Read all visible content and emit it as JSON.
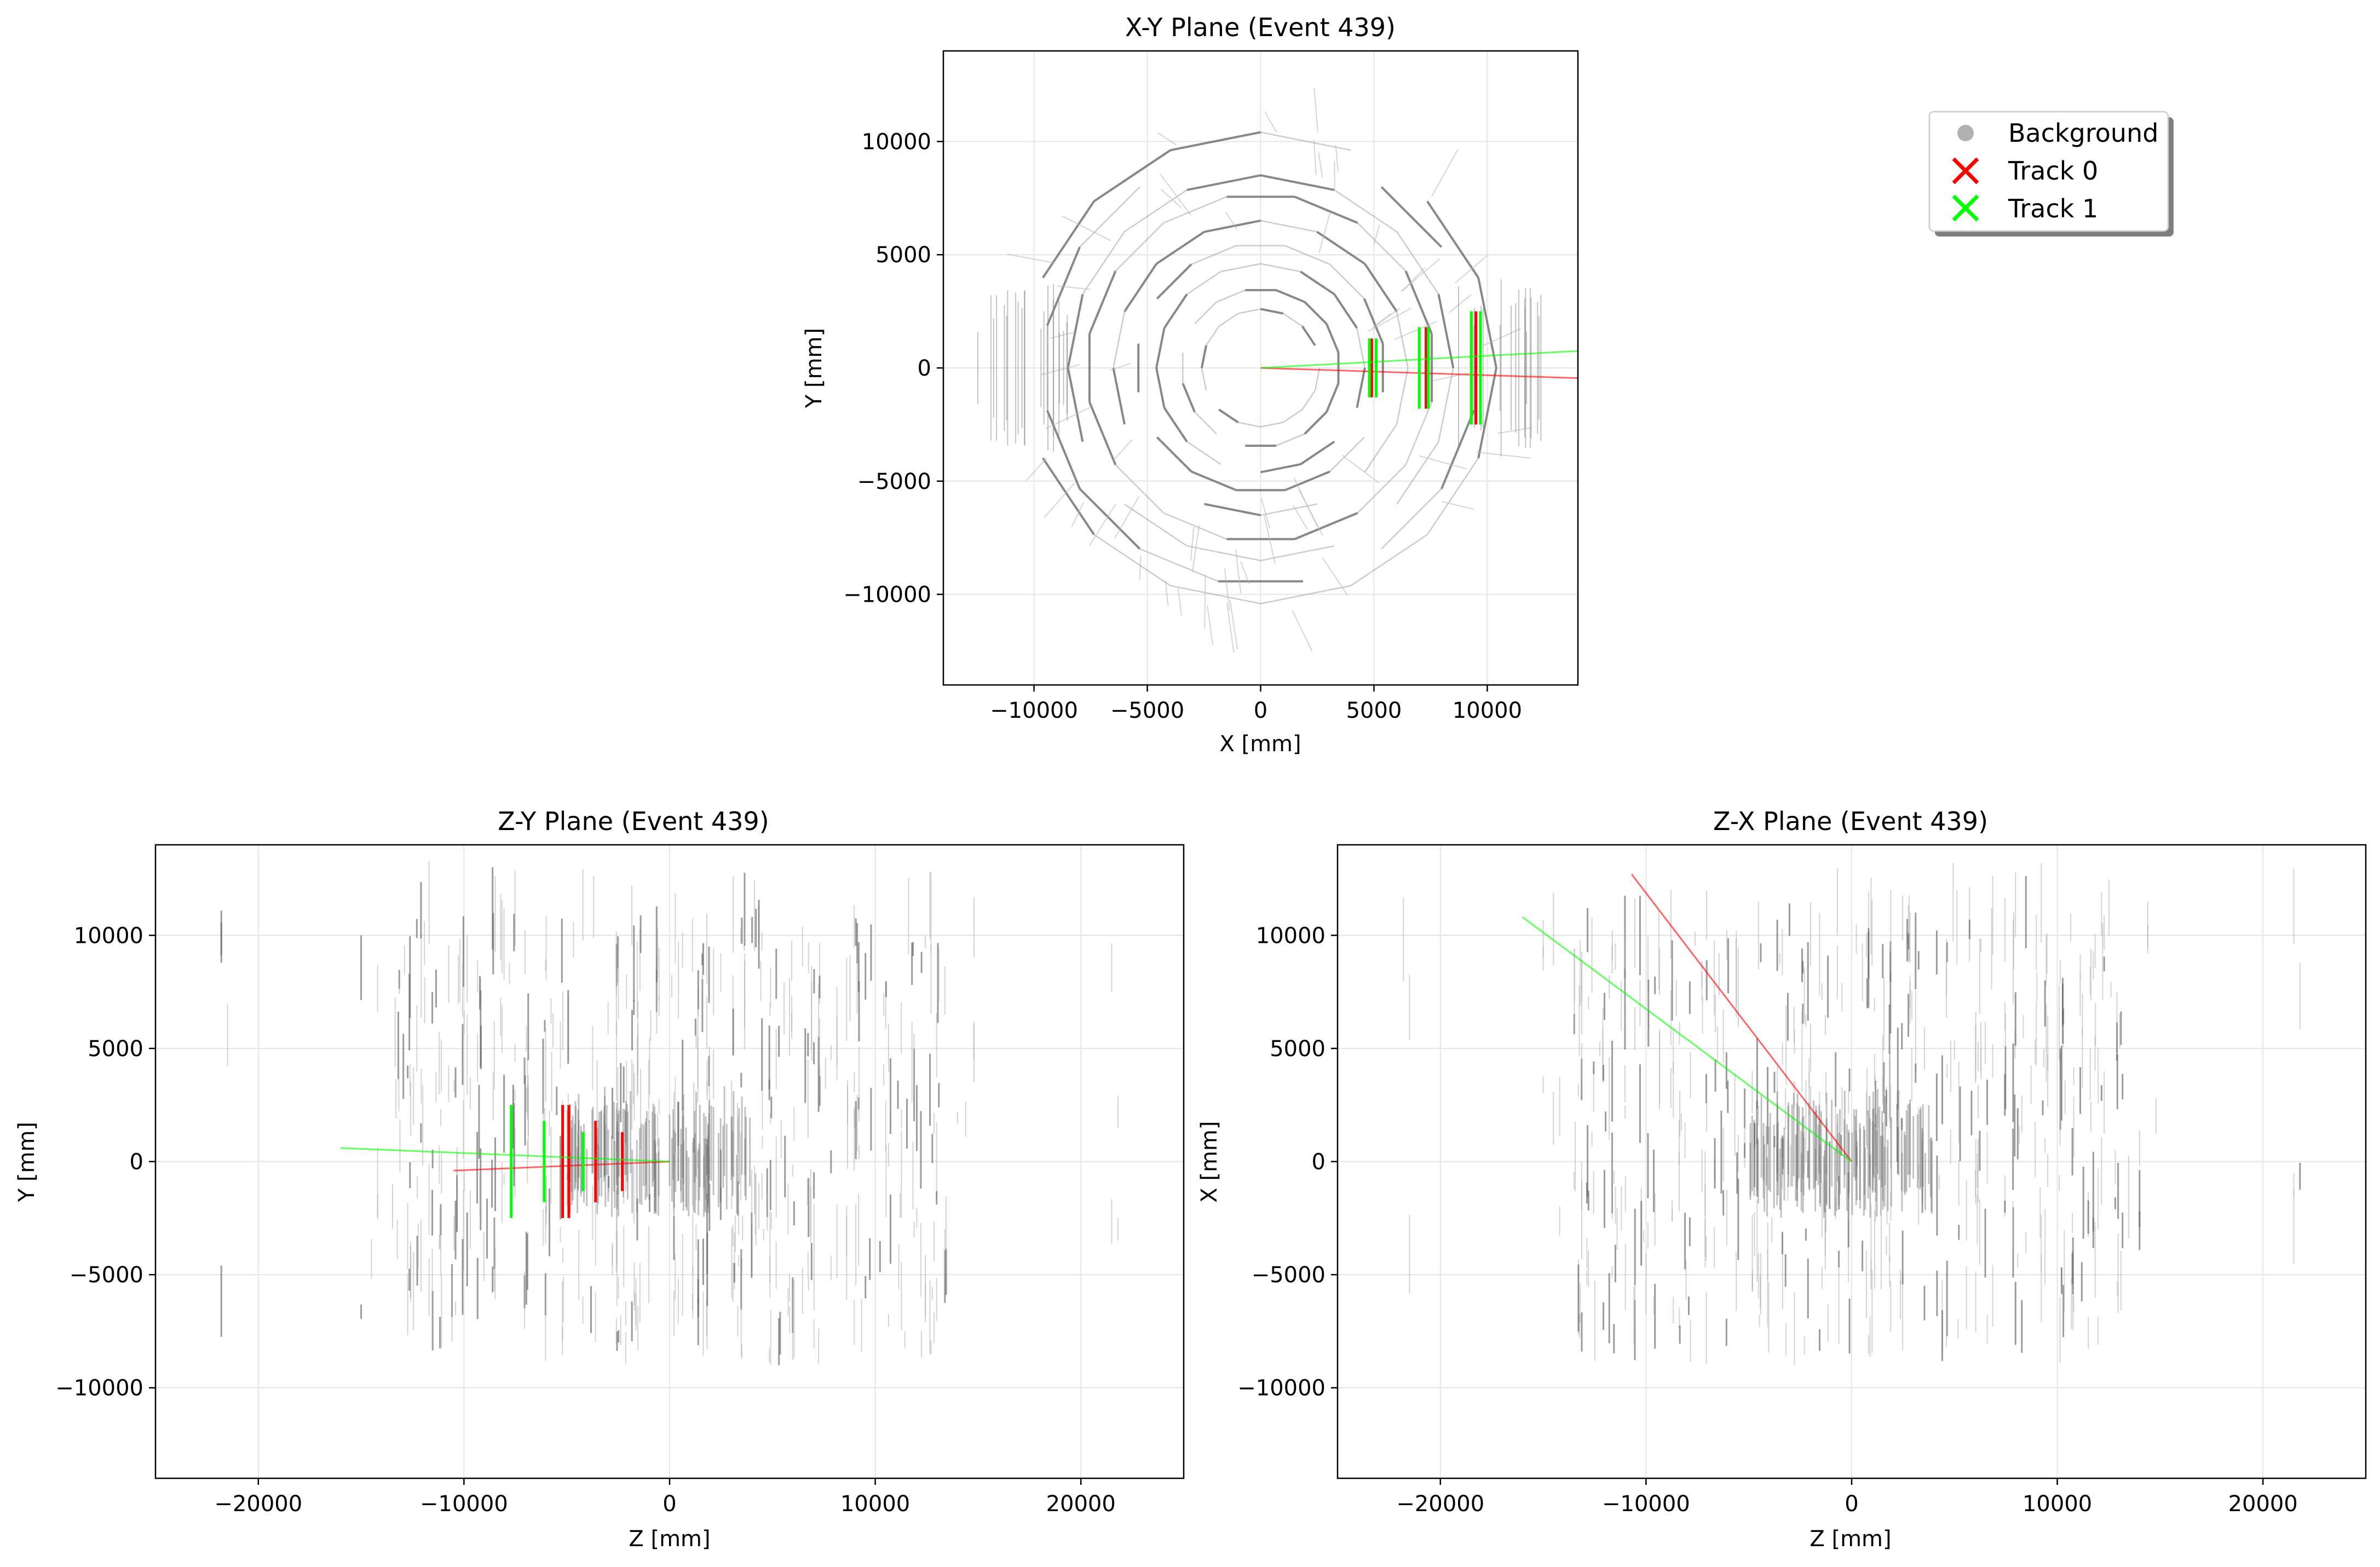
{
  "chart_data": [
    {
      "id": "xy",
      "type": "scatter",
      "title": "X-Y Plane (Event 439)",
      "xlabel": "X [mm]",
      "ylabel": "Y [mm]",
      "xlim": [
        -14000,
        14000
      ],
      "ylim": [
        -14000,
        14000
      ],
      "xticks": [
        -10000,
        -5000,
        0,
        5000,
        10000
      ],
      "yticks": [
        -10000,
        -5000,
        0,
        5000,
        10000
      ],
      "xtick_labels": [
        "−10000",
        "−5000",
        "0",
        "5000",
        "10000"
      ],
      "ytick_labels": [
        "−10000",
        "−5000",
        "0",
        "5000",
        "10000"
      ],
      "grid": true,
      "background_pattern": "rings",
      "background_rings": [
        2600,
        3500,
        4600,
        5500,
        6500,
        7700,
        8500,
        9600,
        10400
      ],
      "series": [
        {
          "name": "Track 0",
          "color": "#ff0000",
          "segments": [
            [
              0,
              0,
              14000,
              -450
            ]
          ],
          "hits": [
            [
              4900,
              -1300,
              4900,
              1300
            ],
            [
              7300,
              -1800,
              7300,
              1800
            ],
            [
              9500,
              -2500,
              9500,
              2500
            ]
          ]
        },
        {
          "name": "Track 1",
          "color": "#00ff00",
          "segments": [
            [
              0,
              0,
              14000,
              750
            ]
          ],
          "hits": [
            [
              4800,
              -1300,
              4800,
              1300
            ],
            [
              5100,
              -1300,
              5100,
              1300
            ],
            [
              7000,
              -1800,
              7000,
              1800
            ],
            [
              7400,
              -1800,
              7400,
              1800
            ],
            [
              9300,
              -2500,
              9300,
              2500
            ],
            [
              9700,
              -2500,
              9700,
              2500
            ]
          ]
        }
      ]
    },
    {
      "id": "zy",
      "type": "scatter",
      "title": "Z-Y Plane (Event 439)",
      "xlabel": "Z [mm]",
      "ylabel": "Y [mm]",
      "xlim": [
        -25000,
        25000
      ],
      "ylim": [
        -14000,
        14000
      ],
      "xticks": [
        -20000,
        -10000,
        0,
        10000,
        20000
      ],
      "yticks": [
        -10000,
        -5000,
        0,
        5000,
        10000
      ],
      "xtick_labels": [
        "−20000",
        "−10000",
        "0",
        "10000",
        "20000"
      ],
      "ytick_labels": [
        "−10000",
        "−5000",
        "0",
        "5000",
        "10000"
      ],
      "grid": true,
      "background_pattern": "barrel",
      "series": [
        {
          "name": "Track 0",
          "color": "#ff0000",
          "segments": [
            [
              -10500,
              -400,
              0,
              0
            ]
          ],
          "hits": [
            [
              -5200,
              -2500,
              -5200,
              2500
            ],
            [
              -4900,
              -2500,
              -4900,
              2500
            ],
            [
              -3600,
              -1800,
              -3600,
              1800
            ],
            [
              -2300,
              -1300,
              -2300,
              1300
            ]
          ]
        },
        {
          "name": "Track 1",
          "color": "#00ff00",
          "segments": [
            [
              -16000,
              600,
              0,
              0
            ]
          ],
          "hits": [
            [
              -7700,
              -2500,
              -7700,
              2500
            ],
            [
              -6100,
              -1800,
              -6100,
              1800
            ],
            [
              -4200,
              -1300,
              -4200,
              1300
            ]
          ]
        }
      ]
    },
    {
      "id": "zx",
      "type": "scatter",
      "title": "Z-X Plane (Event 439)",
      "xlabel": "Z [mm]",
      "ylabel": "X [mm]",
      "xlim": [
        -25000,
        25000
      ],
      "ylim": [
        -14000,
        14000
      ],
      "xticks": [
        -20000,
        -10000,
        0,
        10000,
        20000
      ],
      "yticks": [
        -10000,
        -5000,
        0,
        5000,
        10000
      ],
      "xtick_labels": [
        "−20000",
        "−10000",
        "0",
        "10000",
        "20000"
      ],
      "ytick_labels": [
        "−10000",
        "−5000",
        "0",
        "5000",
        "10000"
      ],
      "grid": true,
      "background_pattern": "barrel",
      "series": [
        {
          "name": "Track 0",
          "color": "#ff0000",
          "segments": [
            [
              -10700,
              12700,
              0,
              0
            ]
          ],
          "hits": []
        },
        {
          "name": "Track 1",
          "color": "#00ff00",
          "segments": [
            [
              -16000,
              10800,
              0,
              0
            ]
          ],
          "hits": []
        }
      ]
    }
  ],
  "legend": {
    "placement": "upper-right",
    "entries": [
      {
        "label": "Background",
        "marker": "dot",
        "color": "#b0b0b0"
      },
      {
        "label": "Track 0",
        "marker": "x",
        "color": "#ff0000"
      },
      {
        "label": "Track 1",
        "marker": "x",
        "color": "#00ff00"
      }
    ]
  }
}
